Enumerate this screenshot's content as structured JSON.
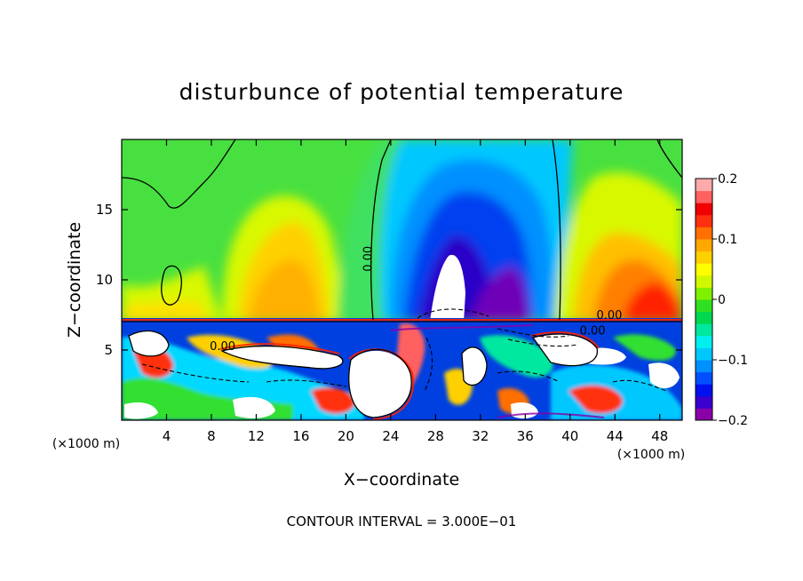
{
  "chart_data": {
    "type": "heatmap",
    "title": "disturbunce of potential temperature",
    "xlabel": "X−coordinate",
    "ylabel": "Z−coordinate",
    "x_unit": "(×1000 m)",
    "footer": "CONTOUR INTERVAL = 3.000E−01",
    "xlim": [
      0,
      50
    ],
    "ylim": [
      0,
      20
    ],
    "x_ticks": [
      4,
      8,
      12,
      16,
      20,
      24,
      28,
      32,
      36,
      40,
      44,
      48
    ],
    "x_tick_labels": [
      "4",
      "8",
      "12",
      "16",
      "20",
      "24",
      "28",
      "32",
      "36",
      "40",
      "44",
      "48"
    ],
    "y_ticks": [
      5,
      10,
      15
    ],
    "y_tick_labels": [
      "5",
      "10",
      "15"
    ],
    "colorbar": {
      "range": [
        -0.2,
        0.2
      ],
      "ticks": [
        0.2,
        0.1,
        0,
        -0.1,
        -0.2
      ],
      "tick_labels": [
        "0.2",
        "0.1",
        "0",
        "−0.1",
        "−0.2"
      ],
      "colors": [
        "#8a00a8",
        "#3a00d0",
        "#0010f0",
        "#0050ff",
        "#0090ff",
        "#00c8ff",
        "#00f0f0",
        "#00e8a0",
        "#00d850",
        "#30e020",
        "#80f000",
        "#d0f800",
        "#ffff00",
        "#ffd000",
        "#ffa800",
        "#ff7000",
        "#ff3010",
        "#f00000",
        "#ff6060",
        "#ffaaaa"
      ]
    },
    "contour_labels": [
      {
        "x": 22.3,
        "z": 11.5,
        "text": "0.00"
      },
      {
        "x": 9.0,
        "z": 5.0,
        "text": "0.00"
      },
      {
        "x": 43.5,
        "z": 7.2,
        "text": "0.00"
      },
      {
        "x": 42.0,
        "z": 6.1,
        "text": "0.00"
      }
    ],
    "upper_field_bands": [
      {
        "x": [
          0,
          6
        ],
        "value": 0.01
      },
      {
        "x": [
          6,
          10
        ],
        "value": 0.05
      },
      {
        "x": [
          10,
          18
        ],
        "value": 0.1
      },
      {
        "x": [
          18,
          23
        ],
        "value": 0.05
      },
      {
        "x": [
          23,
          26
        ],
        "value": -0.05
      },
      {
        "x": [
          26,
          36
        ],
        "value": -0.15
      },
      {
        "x": [
          36,
          39
        ],
        "value": -0.05
      },
      {
        "x": [
          39,
          42
        ],
        "value": 0.03
      },
      {
        "x": [
          42,
          48
        ],
        "value": 0.12
      },
      {
        "x": [
          48,
          50
        ],
        "value": 0.06
      }
    ]
  }
}
